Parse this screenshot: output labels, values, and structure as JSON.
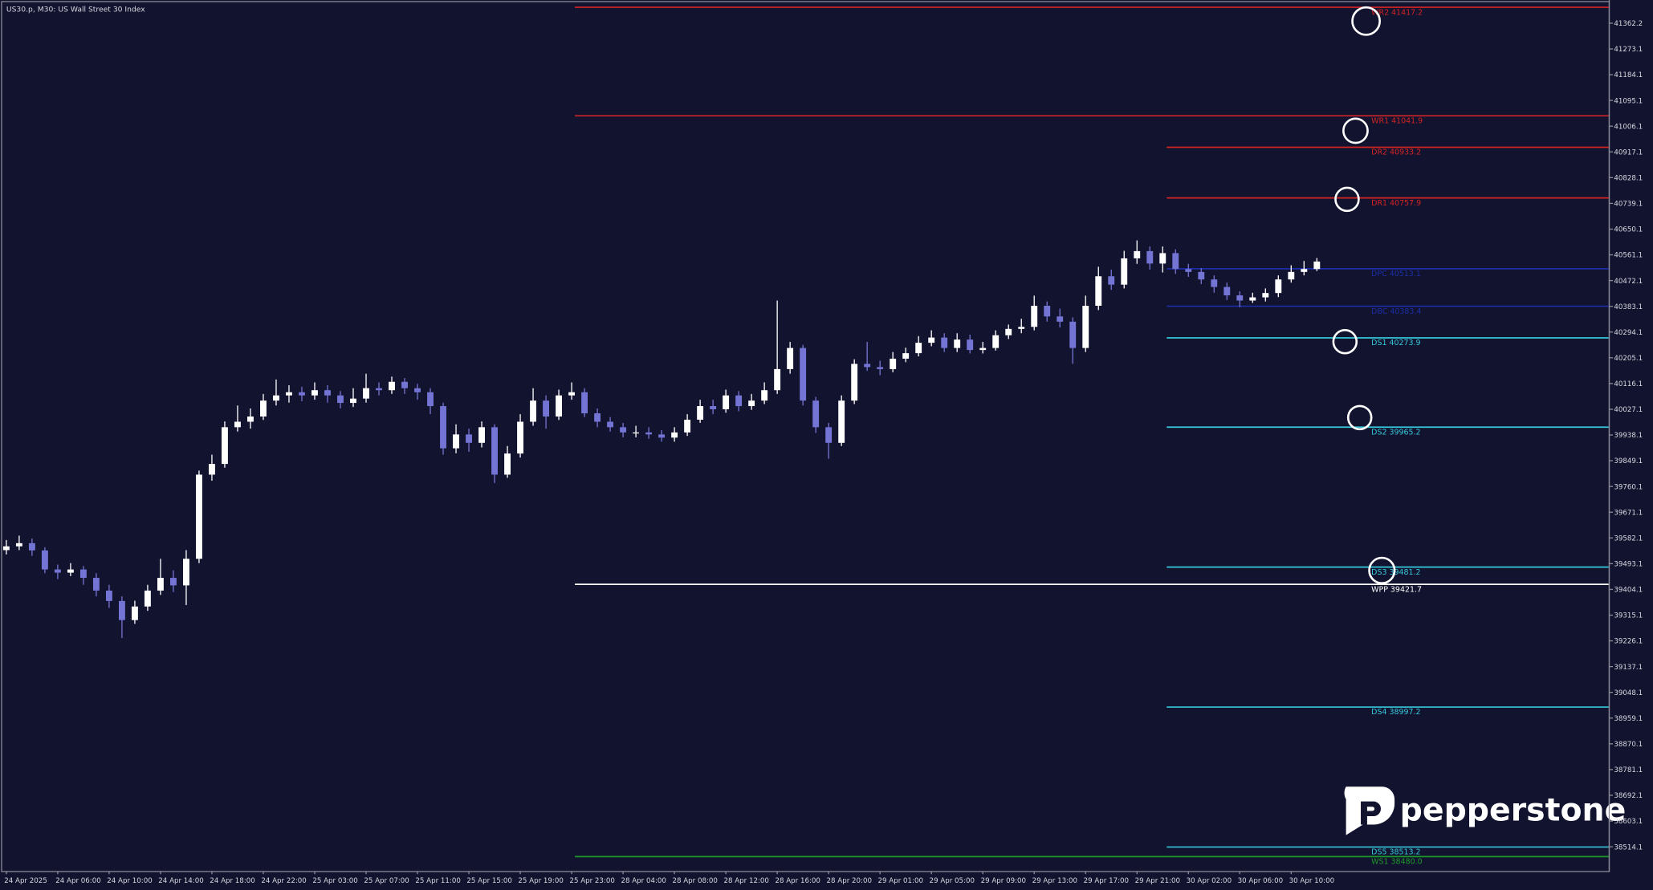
{
  "chart_data": {
    "type": "candlestick",
    "title": "US30.p, M30:  US Wall Street 30 Index",
    "categories": [
      "24 Apr 2025",
      "24 Apr 06:00",
      "24 Apr 10:00",
      "24 Apr 14:00",
      "24 Apr 18:00",
      "24 Apr 22:00",
      "25 Apr 03:00",
      "25 Apr 07:00",
      "25 Apr 11:00",
      "25 Apr 15:00",
      "25 Apr 19:00",
      "25 Apr 23:00",
      "28 Apr 04:00",
      "28 Apr 08:00",
      "28 Apr 12:00",
      "28 Apr 16:00",
      "28 Apr 20:00",
      "29 Apr 01:00",
      "29 Apr 05:00",
      "29 Apr 09:00",
      "29 Apr 13:00",
      "29 Apr 17:00",
      "29 Apr 21:00",
      "30 Apr 02:00",
      "30 Apr 06:00",
      "30 Apr 10:00"
    ],
    "candles": {
      "up_color": "#ffffff",
      "down_color": "#7474d4",
      "open": [
        39540,
        39553,
        39564,
        39539,
        39473,
        39462,
        39473,
        39444,
        39400,
        39364,
        39298,
        39345,
        39400,
        39444,
        39418,
        39510,
        39801,
        39838,
        39965,
        39984,
        40002,
        40057,
        40075,
        40086,
        40075,
        40093,
        40075,
        40049,
        40064,
        40100,
        40093,
        40122,
        40100,
        40086,
        40038,
        39892,
        39940,
        39911,
        39965,
        39801,
        39874,
        39984,
        40057,
        40002,
        40075,
        40086,
        40013,
        39984,
        39965,
        39947,
        39947,
        39940,
        39929,
        39947,
        39991,
        40038,
        40027,
        40075,
        40038,
        40057,
        40093,
        40166,
        40239,
        40057,
        39965,
        39911,
        40057,
        40184,
        40173,
        40166,
        40202,
        40221,
        40257,
        40275,
        40239,
        40268,
        40232,
        40239,
        40283,
        40305,
        40312,
        40385,
        40348,
        40330,
        40239,
        40385,
        40487,
        40458,
        40549,
        40574,
        40531,
        40567,
        40512,
        40502,
        40476,
        40450,
        40421,
        40403,
        40414,
        40429,
        40476,
        40502,
        40512
      ],
      "high": [
        39575,
        39590,
        39580,
        39550,
        39490,
        39495,
        39485,
        39460,
        39420,
        39380,
        39365,
        39420,
        39510,
        39470,
        39540,
        39815,
        39870,
        39985,
        40040,
        40030,
        40080,
        40130,
        40110,
        40105,
        40120,
        40110,
        40090,
        40100,
        40150,
        40120,
        40140,
        40135,
        40115,
        40100,
        40050,
        39975,
        39960,
        39985,
        39975,
        39900,
        40010,
        40100,
        40075,
        40095,
        40120,
        40100,
        40030,
        40000,
        39980,
        39970,
        39965,
        39955,
        39965,
        40010,
        40060,
        40060,
        40095,
        40090,
        40080,
        40120,
        40403,
        40260,
        40250,
        40070,
        39980,
        40075,
        40200,
        40260,
        40195,
        40225,
        40240,
        40280,
        40300,
        40290,
        40290,
        40285,
        40260,
        40300,
        40320,
        40340,
        40420,
        40400,
        40375,
        40345,
        40420,
        40520,
        40510,
        40575,
        40611,
        40590,
        40590,
        40580,
        40530,
        40515,
        40490,
        40465,
        40435,
        40430,
        40445,
        40490,
        40525,
        40540,
        40550
      ],
      "low": [
        39525,
        39540,
        39520,
        39460,
        39440,
        39450,
        39420,
        39380,
        39340,
        39236,
        39285,
        39330,
        39385,
        39395,
        39350,
        39495,
        39780,
        39825,
        39950,
        39960,
        39990,
        40040,
        40050,
        40055,
        40060,
        40050,
        40030,
        40035,
        40050,
        40075,
        40080,
        40080,
        40060,
        40010,
        39870,
        39875,
        39880,
        39895,
        39772,
        39790,
        39860,
        39970,
        39960,
        39990,
        40060,
        40000,
        39965,
        39950,
        39930,
        39930,
        39925,
        39915,
        39915,
        39935,
        39980,
        40010,
        40015,
        40020,
        40025,
        40045,
        40080,
        40150,
        40040,
        39945,
        39856,
        39900,
        40045,
        40160,
        40145,
        40155,
        40190,
        40210,
        40245,
        40225,
        40225,
        40220,
        40220,
        40230,
        40270,
        40290,
        40300,
        40330,
        40310,
        40184,
        40225,
        40370,
        40440,
        40445,
        40530,
        40510,
        40500,
        40495,
        40485,
        40460,
        40430,
        40405,
        40380,
        40395,
        40400,
        40415,
        40465,
        40490,
        40505
      ],
      "close": [
        39553,
        39564,
        39539,
        39473,
        39462,
        39473,
        39444,
        39400,
        39364,
        39298,
        39345,
        39400,
        39444,
        39418,
        39510,
        39801,
        39838,
        39965,
        39984,
        40002,
        40057,
        40075,
        40086,
        40075,
        40093,
        40075,
        40049,
        40064,
        40100,
        40093,
        40122,
        40100,
        40086,
        40038,
        39892,
        39940,
        39911,
        39965,
        39801,
        39874,
        39984,
        40057,
        40002,
        40075,
        40086,
        40013,
        39984,
        39965,
        39947,
        39947,
        39940,
        39929,
        39947,
        39991,
        40038,
        40027,
        40075,
        40038,
        40057,
        40093,
        40166,
        40239,
        40057,
        39965,
        39911,
        40057,
        40184,
        40173,
        40166,
        40202,
        40221,
        40257,
        40275,
        40239,
        40268,
        40232,
        40239,
        40283,
        40305,
        40312,
        40385,
        40348,
        40330,
        40239,
        40385,
        40487,
        40458,
        40549,
        40574,
        40531,
        40567,
        40512,
        40502,
        40476,
        40450,
        40421,
        40403,
        40414,
        40429,
        40476,
        40502,
        40512,
        40538
      ]
    },
    "levels": [
      {
        "label": "WR2 41417.2",
        "value": 41417.2,
        "color": "#d42424"
      },
      {
        "label": "WR1 41041.9",
        "value": 41041.9,
        "color": "#d42424"
      },
      {
        "label": "DR2 40933.2",
        "value": 40933.2,
        "color": "#d42424"
      },
      {
        "label": "DR1 40757.9",
        "value": 40757.9,
        "color": "#d42424"
      },
      {
        "label": "DPC 40513.1",
        "value": 40513.1,
        "color": "#1c2ea6"
      },
      {
        "label": "DBC 40383.4",
        "value": 40383.4,
        "color": "#1c2ea6"
      },
      {
        "label": "DS1 40273.9",
        "value": 40273.9,
        "color": "#36c8da"
      },
      {
        "label": "DS2 39965.2",
        "value": 39965.2,
        "color": "#36c8da"
      },
      {
        "label": "DS3 39481.2",
        "value": 39481.2,
        "color": "#36c8da"
      },
      {
        "label": "WPP 39421.7",
        "value": 39421.7,
        "color": "#ffffff"
      },
      {
        "label": "DS4 38997.2",
        "value": 38997.2,
        "color": "#36c8da"
      },
      {
        "label": "DS5 38513.2",
        "value": 38513.2,
        "color": "#36c8da"
      },
      {
        "label": "WS1 38480.0",
        "value": 38480.0,
        "color": "#1d9a2a"
      }
    ],
    "ylim": [
      38430.2,
      41442.4
    ],
    "yticks": [
      41362.2,
      41273.1,
      41184.1,
      41095.1,
      41006.1,
      40917.1,
      40828.1,
      40739.1,
      40650.1,
      40561.1,
      40472.1,
      40383.1,
      40294.1,
      40205.1,
      40116.1,
      40027.1,
      39938.1,
      39849.1,
      39760.1,
      39671.1,
      39582.1,
      39493.1,
      39404.1,
      39315.1,
      39226.1,
      39137.1,
      39048.1,
      38959.1,
      38870.1,
      38781.1,
      38692.1,
      38603.1,
      38514.1
    ],
    "logo": "pepperstone"
  }
}
